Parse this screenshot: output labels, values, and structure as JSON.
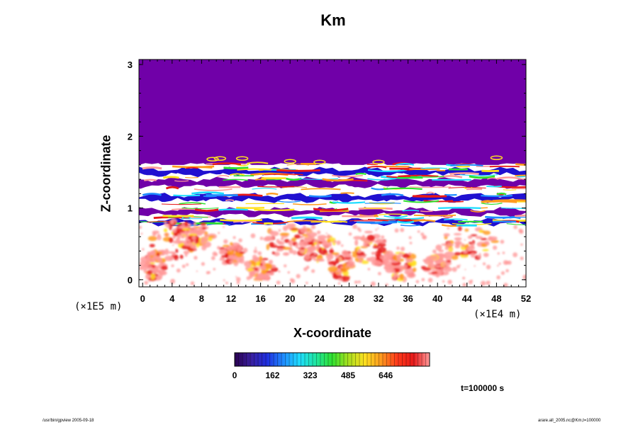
{
  "chart_data": {
    "type": "heatmap",
    "title": "Km",
    "xlabel": "X-coordinate",
    "ylabel": "Z-coordinate",
    "x_unit": "(×1E4 m)",
    "y_unit": "(×1E5 m)",
    "xlim": [
      -0.5,
      52
    ],
    "ylim": [
      -0.1,
      3.07
    ],
    "x_ticks": [
      "0",
      "4",
      "8",
      "12",
      "16",
      "20",
      "24",
      "28",
      "32",
      "36",
      "40",
      "44",
      "48",
      "52"
    ],
    "y_ticks": [
      "0",
      "1",
      "2",
      "3"
    ],
    "colorbar_ticks": [
      "0",
      "162",
      "323",
      "485",
      "646"
    ],
    "colorbar_range": [
      0,
      800
    ],
    "colormap": [
      "#2a0050",
      "#3a1f9e",
      "#1f2fe0",
      "#1f8cff",
      "#1fdcff",
      "#20e6a0",
      "#30e030",
      "#a8e020",
      "#ffe020",
      "#ff9b1f",
      "#ff3a1a",
      "#e61a1a",
      "#ff9a9a"
    ],
    "background_value_color": "#7000a8",
    "bands": [
      {
        "z_range": [
          1.6,
          3.07
        ],
        "value": 0,
        "description": "uniform region"
      },
      {
        "z_range": [
          0.75,
          1.6
        ],
        "value": "mixed",
        "description": "layered structure"
      },
      {
        "z_range": [
          -0.1,
          0.75
        ],
        "value": "mixed",
        "description": "turbulent eddies"
      }
    ]
  },
  "annotations": {
    "time": "t=100000 s",
    "footer_left": "/usr/bin/gpview 2005-09-18",
    "footer_right": "arare.all_2005.nc@Km,t=100000"
  },
  "colors": {
    "upper_purple": "#7000a8",
    "band_blue": "#2010d0",
    "band_white": "#ffffff",
    "eddy_pink": "#ff9a9a",
    "eddy_red": "#e61a1a",
    "eddy_orange": "#ff9b1f",
    "eddy_yellow": "#ffe020"
  }
}
